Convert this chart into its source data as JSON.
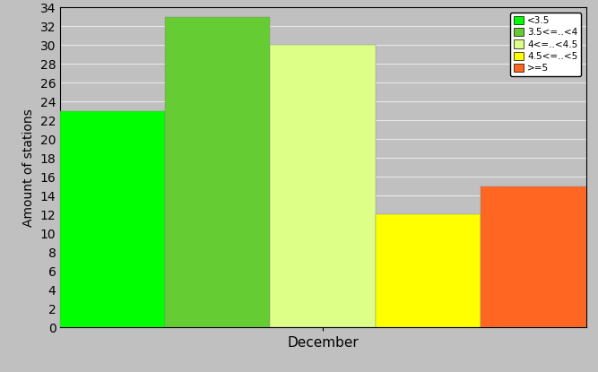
{
  "bars": [
    {
      "label": "<3.5",
      "value": 23,
      "color": "#00ff00"
    },
    {
      "label": "3.5<=..<4",
      "value": 33,
      "color": "#66cc33"
    },
    {
      "label": "4<=..<4.5",
      "value": 30,
      "color": "#ddff88"
    },
    {
      "label": "4.5<=..<5",
      "value": 12,
      "color": "#ffff00"
    },
    {
      "label": ">=5",
      "value": 15,
      "color": "#ff6622"
    }
  ],
  "ylabel": "Amount of stations",
  "xlabel": "December",
  "ylim": [
    0,
    34
  ],
  "yticks": [
    0,
    2,
    4,
    6,
    8,
    10,
    12,
    14,
    16,
    18,
    20,
    22,
    24,
    26,
    28,
    30,
    32,
    34
  ],
  "bg_color": "#c0c0c0",
  "grid_color": "#e8e8e8",
  "bar_width": 1.0,
  "figsize": [
    6.67,
    4.15
  ],
  "dpi": 100,
  "legend_labels": [
    "<3.5",
    "3.5<=..<4",
    "4<=..<4.5",
    "4.5<=..<5",
    ">=5"
  ],
  "legend_colors": [
    "#00ff00",
    "#66cc33",
    "#ddff88",
    "#ffff00",
    "#ff6622"
  ]
}
